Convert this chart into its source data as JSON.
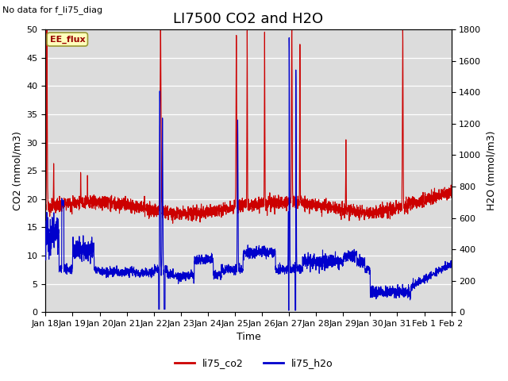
{
  "title": "LI7500 CO2 and H2O",
  "top_left_text": "No data for f_li75_diag",
  "xlabel": "Time",
  "ylabel_left": "CO2 (mmol/m3)",
  "ylabel_right": "H2O (mmol/m3)",
  "ylim_left": [
    0,
    50
  ],
  "ylim_right": [
    0,
    1800
  ],
  "background_color": "#dcdcdc",
  "legend_entries": [
    "li75_co2",
    "li75_h2o"
  ],
  "legend_colors": [
    "#cc0000",
    "#0000cc"
  ],
  "annotation_text": "EE_flux",
  "annotation_bg": "#ffffbb",
  "annotation_border": "#999933",
  "co2_color": "#cc0000",
  "h2o_color": "#0000cc",
  "x_tick_labels": [
    "Jan 18",
    "Jan 19",
    "Jan 20",
    "Jan 21",
    "Jan 22",
    "Jan 23",
    "Jan 24",
    "Jan 25",
    "Jan 26",
    "Jan 27",
    "Jan 28",
    "Jan 29",
    "Jan 30",
    "Jan 31",
    "Feb 1",
    "Feb 2"
  ],
  "yticks_left": [
    0,
    5,
    10,
    15,
    20,
    25,
    30,
    35,
    40,
    45,
    50
  ],
  "yticks_right": [
    0,
    200,
    400,
    600,
    800,
    1000,
    1200,
    1400,
    1600,
    1800
  ],
  "n_points": 3000,
  "title_fontsize": 13,
  "axis_label_fontsize": 9,
  "tick_fontsize": 8,
  "legend_fontsize": 9,
  "figsize": [
    6.4,
    4.8
  ],
  "dpi": 100
}
